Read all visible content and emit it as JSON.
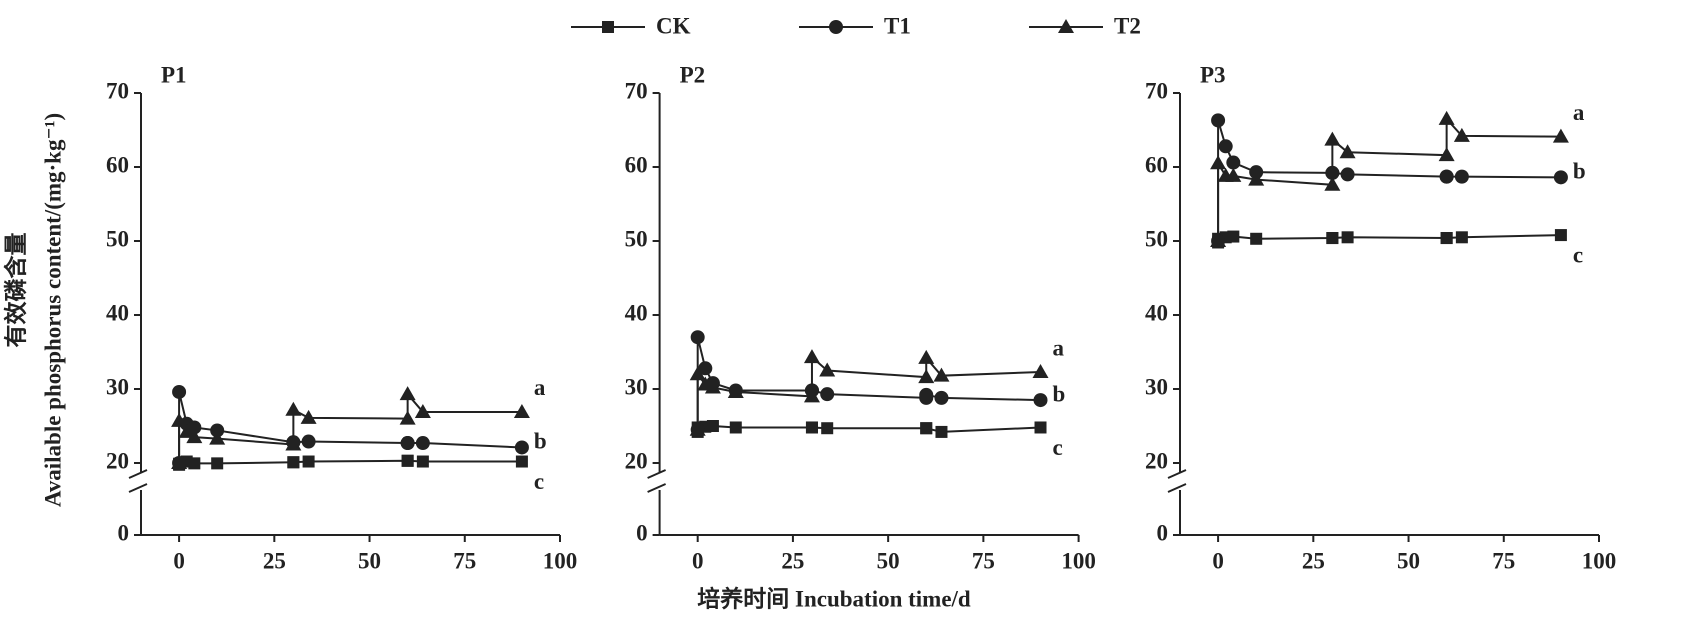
{
  "y_label": [
    "有效磷含量",
    "Available phosphorus content/(mg·kg⁻¹)"
  ],
  "x_label": "培养时间 Incubation time/d",
  "chart_data": [
    {
      "type": "line",
      "title": "P1",
      "x": [
        0,
        0,
        2,
        4,
        10,
        30,
        30,
        34,
        60,
        60,
        64,
        90
      ],
      "series": [
        {
          "name": "CK",
          "color": "#222222",
          "marker": "square",
          "values": [
            19.5,
            19.8,
            20.2,
            19.9,
            19.9,
            20.1,
            20.1,
            20.2,
            20.3,
            20.3,
            20.2,
            20.2
          ],
          "label": "c"
        },
        {
          "name": "T1",
          "color": "#222222",
          "marker": "circle",
          "values": [
            20,
            29.6,
            25.3,
            24.8,
            24.4,
            22.8,
            22.8,
            22.9,
            22.7,
            22.7,
            22.7,
            22.1
          ],
          "label": "b"
        },
        {
          "name": "T2",
          "color": "#222222",
          "marker": "triangle",
          "values": [
            20,
            25.7,
            24.2,
            23.5,
            23.3,
            22.5,
            27.2,
            26.1,
            26.0,
            29.3,
            26.9,
            26.9
          ],
          "label": "a"
        }
      ],
      "xlim": [
        -10,
        100
      ],
      "xticks": [
        0,
        25,
        50,
        75,
        100
      ],
      "ylim": [
        0,
        70
      ],
      "yticks": [
        0,
        20,
        30,
        40,
        50,
        60,
        70
      ],
      "y_break": [
        0,
        20
      ]
    },
    {
      "type": "line",
      "title": "P2",
      "x": [
        0,
        0,
        2,
        4,
        10,
        30,
        30,
        34,
        60,
        60,
        64,
        90
      ],
      "series": [
        {
          "name": "CK",
          "color": "#222222",
          "marker": "square",
          "values": [
            24.2,
            24.8,
            24.9,
            25.0,
            24.8,
            24.8,
            24.8,
            24.7,
            24.7,
            24.7,
            24.2,
            24.8
          ],
          "label": "c"
        },
        {
          "name": "T1",
          "color": "#222222",
          "marker": "circle",
          "values": [
            24.5,
            37.0,
            32.8,
            30.8,
            29.8,
            29.8,
            29.8,
            29.3,
            28.8,
            29.2,
            28.8,
            28.5
          ],
          "label": "b"
        },
        {
          "name": "T2",
          "color": "#222222",
          "marker": "triangle",
          "values": [
            24.5,
            32.0,
            30.6,
            30.2,
            29.6,
            29.0,
            34.3,
            32.5,
            31.6,
            34.2,
            31.8,
            32.3
          ],
          "label": "a"
        }
      ],
      "xlim": [
        -10,
        100
      ],
      "xticks": [
        0,
        25,
        50,
        75,
        100
      ],
      "ylim": [
        0,
        70
      ],
      "yticks": [
        0,
        20,
        30,
        40,
        50,
        60,
        70
      ],
      "y_break": [
        0,
        20
      ]
    },
    {
      "type": "line",
      "title": "P3",
      "x": [
        0,
        0,
        2,
        4,
        10,
        30,
        30,
        34,
        60,
        60,
        64,
        90
      ],
      "series": [
        {
          "name": "CK",
          "color": "#222222",
          "marker": "square",
          "values": [
            49.8,
            50.3,
            50.5,
            50.6,
            50.3,
            50.4,
            50.4,
            50.5,
            50.4,
            50.4,
            50.5,
            50.8
          ],
          "label": "c"
        },
        {
          "name": "T1",
          "color": "#222222",
          "marker": "circle",
          "values": [
            50,
            66.3,
            62.8,
            60.6,
            59.3,
            59.2,
            59.2,
            59.0,
            58.7,
            58.7,
            58.7,
            58.6
          ],
          "label": "b"
        },
        {
          "name": "T2",
          "color": "#222222",
          "marker": "triangle",
          "values": [
            50,
            60.5,
            58.8,
            58.8,
            58.3,
            57.6,
            63.7,
            62.0,
            61.6,
            66.5,
            64.2,
            64.1
          ],
          "label": "a"
        }
      ],
      "xlim": [
        -10,
        100
      ],
      "xticks": [
        0,
        25,
        50,
        75,
        100
      ],
      "ylim": [
        0,
        70
      ],
      "yticks": [
        0,
        20,
        30,
        40,
        50,
        60,
        70
      ],
      "y_break": [
        0,
        20
      ]
    }
  ]
}
